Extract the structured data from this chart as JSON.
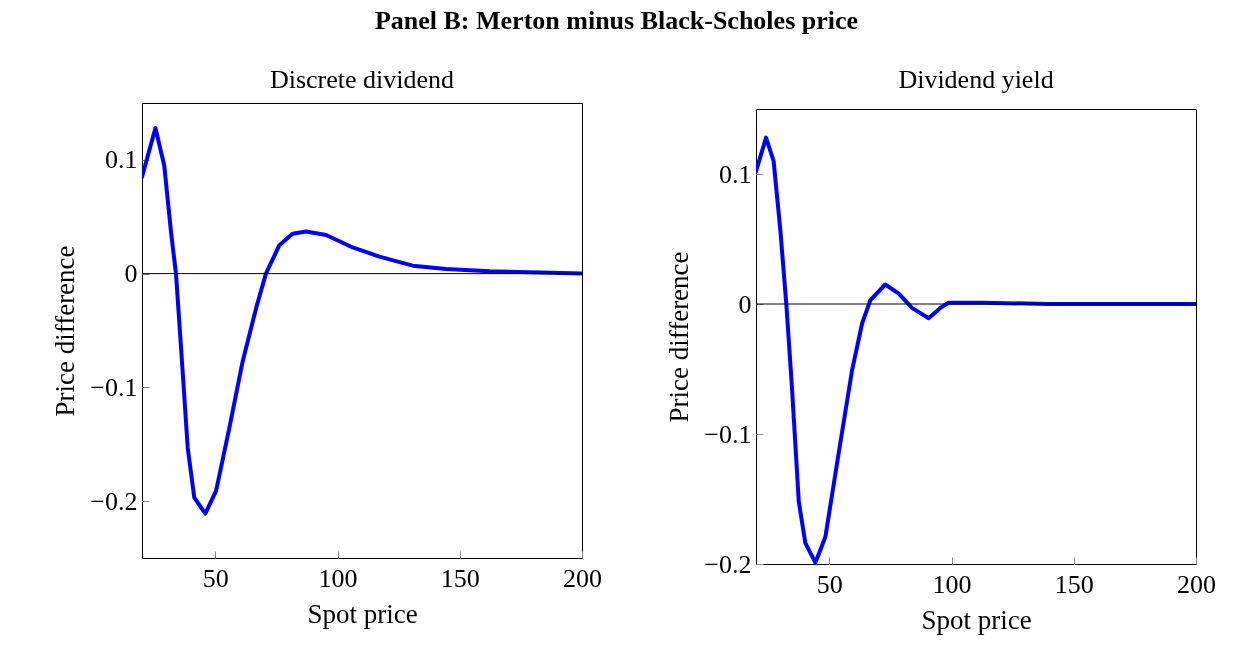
{
  "chart_data": [
    {
      "type": "line",
      "title": "Panel B: Merton minus Black-Scholes price",
      "subtitle": "Discrete dividend",
      "xlabel": "Spot price",
      "ylabel": "Price difference",
      "xlim": [
        20,
        200
      ],
      "ylim": [
        -0.25,
        0.15
      ],
      "xticks": [
        50,
        100,
        150,
        200
      ],
      "yticks": [
        -0.2,
        -0.1,
        0,
        0.1
      ],
      "grid": false,
      "ref_lines": [
        {
          "axis": "y",
          "value": 0,
          "color": "#000000"
        }
      ],
      "series": [
        {
          "color": "#0000ff",
          "x": [
            20,
            25.5,
            29.1,
            31.9,
            33.9,
            36,
            38.7,
            41.4,
            45.9,
            50.3,
            55.7,
            61.2,
            66.6,
            70.7,
            76.2,
            81.6,
            87.1,
            95.3,
            106.2,
            117.1,
            130.7,
            144.4,
            162.1,
            182.5,
            200
          ],
          "values": [
            0.085,
            0.128,
            0.095,
            0.036,
            0,
            -0.066,
            -0.153,
            -0.197,
            -0.211,
            -0.191,
            -0.136,
            -0.077,
            -0.031,
            0,
            0.025,
            0.035,
            0.037,
            0.034,
            0.023,
            0.015,
            0.007,
            0.004,
            0.002,
            0.001,
            0
          ]
        }
      ]
    },
    {
      "type": "line",
      "subtitle": "Dividend yield",
      "xlabel": "Spot price",
      "ylabel": "Price difference",
      "xlim": [
        20,
        200
      ],
      "ylim": [
        -0.2,
        0.15
      ],
      "xticks": [
        50,
        100,
        150,
        200
      ],
      "yticks": [
        -0.2,
        -0.1,
        0,
        0.1
      ],
      "grid": false,
      "ref_lines": [
        {
          "axis": "y",
          "value": 0,
          "color": "#000000"
        }
      ],
      "series": [
        {
          "color": "#0000ff",
          "x": [
            20,
            24.1,
            27.2,
            30,
            32.4,
            34.7,
            37.5,
            40.2,
            44.3,
            48.4,
            53.8,
            59.3,
            63.4,
            66.8,
            72.9,
            78.4,
            83.8,
            90.6,
            95.4,
            98.8,
            112.5,
            139.7,
            200
          ],
          "values": [
            0.102,
            0.128,
            0.11,
            0.056,
            0,
            -0.064,
            -0.152,
            -0.184,
            -0.199,
            -0.179,
            -0.115,
            -0.051,
            -0.015,
            0.003,
            0.015,
            0.008,
            -0.003,
            -0.011,
            -0.003,
            0.001,
            0.001,
            0,
            0
          ]
        }
      ]
    }
  ]
}
